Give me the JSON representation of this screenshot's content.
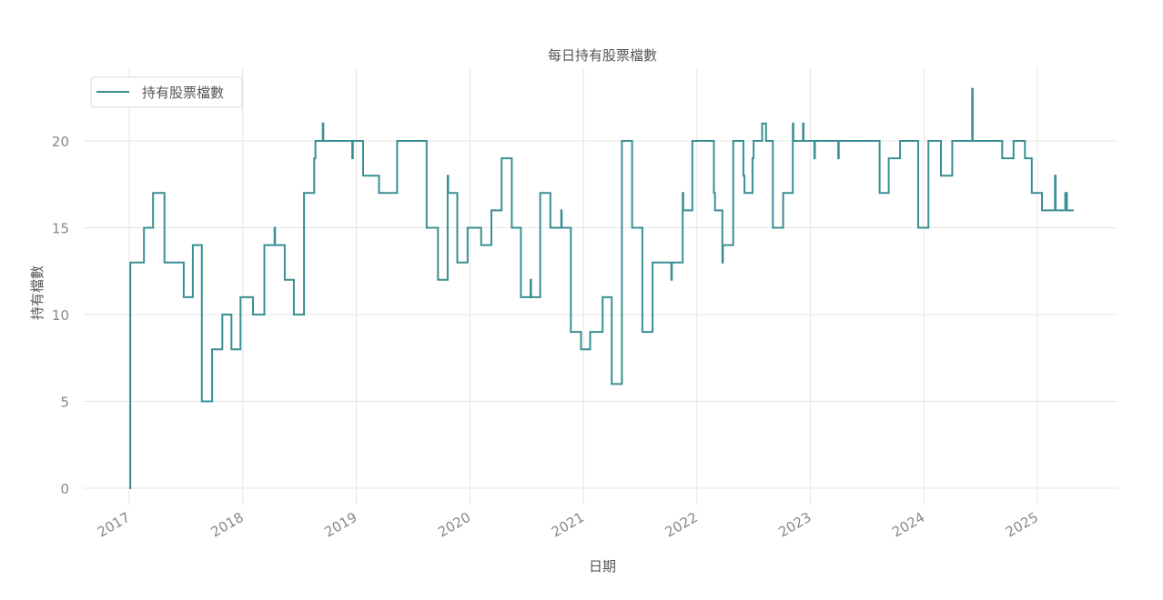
{
  "chart_data": {
    "type": "line",
    "step": true,
    "title": "每日持有股票檔數",
    "xlabel": "日期",
    "ylabel": "持有檔數",
    "legend": {
      "position": "upper left",
      "entries": [
        "持有股票檔數"
      ]
    },
    "grid": true,
    "xlim": [
      2016.6,
      2025.7
    ],
    "ylim": [
      -1.0,
      24.0
    ],
    "x_ticks": [
      2017,
      2018,
      2019,
      2020,
      2021,
      2022,
      2023,
      2024,
      2025
    ],
    "x_tick_labels": [
      "2017",
      "2018",
      "2019",
      "2020",
      "2021",
      "2022",
      "2023",
      "2024",
      "2025"
    ],
    "y_ticks": [
      0,
      5,
      10,
      15,
      20
    ],
    "y_tick_labels": [
      "0",
      "5",
      "10",
      "15",
      "20"
    ],
    "series": [
      {
        "name": "持有股票檔數",
        "color": "#3a8f93",
        "points": [
          [
            2017.0,
            0
          ],
          [
            2017.01,
            13
          ],
          [
            2017.12,
            13
          ],
          [
            2017.13,
            15
          ],
          [
            2017.2,
            15
          ],
          [
            2017.21,
            17
          ],
          [
            2017.3,
            17
          ],
          [
            2017.31,
            13
          ],
          [
            2017.47,
            13
          ],
          [
            2017.48,
            11
          ],
          [
            2017.55,
            11
          ],
          [
            2017.56,
            14
          ],
          [
            2017.63,
            14
          ],
          [
            2017.64,
            5
          ],
          [
            2017.72,
            5
          ],
          [
            2017.73,
            8
          ],
          [
            2017.81,
            8
          ],
          [
            2017.82,
            10
          ],
          [
            2017.89,
            10
          ],
          [
            2017.9,
            8
          ],
          [
            2017.97,
            8
          ],
          [
            2017.98,
            11
          ],
          [
            2018.08,
            11
          ],
          [
            2018.09,
            10
          ],
          [
            2018.18,
            10
          ],
          [
            2018.19,
            14
          ],
          [
            2018.27,
            14
          ],
          [
            2018.28,
            15
          ],
          [
            2018.285,
            14
          ],
          [
            2018.36,
            14
          ],
          [
            2018.37,
            12
          ],
          [
            2018.44,
            12
          ],
          [
            2018.45,
            10
          ],
          [
            2018.53,
            10
          ],
          [
            2018.54,
            17
          ],
          [
            2018.62,
            17
          ],
          [
            2018.63,
            19
          ],
          [
            2018.64,
            20
          ],
          [
            2018.7,
            20
          ],
          [
            2018.705,
            21
          ],
          [
            2018.71,
            20
          ],
          [
            2018.96,
            20
          ],
          [
            2018.965,
            19
          ],
          [
            2018.97,
            20
          ],
          [
            2019.05,
            20
          ],
          [
            2019.06,
            18
          ],
          [
            2019.19,
            18
          ],
          [
            2019.2,
            17
          ],
          [
            2019.35,
            17
          ],
          [
            2019.36,
            20
          ],
          [
            2019.61,
            20
          ],
          [
            2019.62,
            15
          ],
          [
            2019.71,
            15
          ],
          [
            2019.72,
            12
          ],
          [
            2019.8,
            12
          ],
          [
            2019.805,
            18
          ],
          [
            2019.81,
            17
          ],
          [
            2019.88,
            17
          ],
          [
            2019.89,
            13
          ],
          [
            2019.97,
            13
          ],
          [
            2019.98,
            15
          ],
          [
            2020.09,
            15
          ],
          [
            2020.1,
            14
          ],
          [
            2020.18,
            14
          ],
          [
            2020.19,
            16
          ],
          [
            2020.27,
            16
          ],
          [
            2020.28,
            19
          ],
          [
            2020.36,
            19
          ],
          [
            2020.37,
            15
          ],
          [
            2020.44,
            15
          ],
          [
            2020.45,
            11
          ],
          [
            2020.53,
            11
          ],
          [
            2020.535,
            12
          ],
          [
            2020.54,
            11
          ],
          [
            2020.61,
            11
          ],
          [
            2020.62,
            17
          ],
          [
            2020.7,
            17
          ],
          [
            2020.71,
            15
          ],
          [
            2020.8,
            15
          ],
          [
            2020.805,
            16
          ],
          [
            2020.81,
            15
          ],
          [
            2020.88,
            15
          ],
          [
            2020.89,
            9
          ],
          [
            2020.97,
            9
          ],
          [
            2020.98,
            8
          ],
          [
            2021.05,
            8
          ],
          [
            2021.06,
            9
          ],
          [
            2021.16,
            9
          ],
          [
            2021.17,
            11
          ],
          [
            2021.24,
            11
          ],
          [
            2021.25,
            6
          ],
          [
            2021.33,
            6
          ],
          [
            2021.34,
            20
          ],
          [
            2021.42,
            20
          ],
          [
            2021.43,
            15
          ],
          [
            2021.51,
            15
          ],
          [
            2021.52,
            9
          ],
          [
            2021.6,
            9
          ],
          [
            2021.61,
            13
          ],
          [
            2021.77,
            13
          ],
          [
            2021.775,
            12
          ],
          [
            2021.78,
            13
          ],
          [
            2021.87,
            13
          ],
          [
            2021.875,
            17
          ],
          [
            2021.88,
            16
          ],
          [
            2021.95,
            16
          ],
          [
            2021.96,
            20
          ],
          [
            2022.14,
            20
          ],
          [
            2022.15,
            17
          ],
          [
            2022.16,
            16
          ],
          [
            2022.22,
            16
          ],
          [
            2022.225,
            13
          ],
          [
            2022.23,
            14
          ],
          [
            2022.31,
            14
          ],
          [
            2022.32,
            20
          ],
          [
            2022.4,
            20
          ],
          [
            2022.41,
            18
          ],
          [
            2022.42,
            17
          ],
          [
            2022.48,
            17
          ],
          [
            2022.49,
            19
          ],
          [
            2022.5,
            20
          ],
          [
            2022.57,
            20
          ],
          [
            2022.575,
            21
          ],
          [
            2022.6,
            21
          ],
          [
            2022.61,
            20
          ],
          [
            2022.66,
            20
          ],
          [
            2022.67,
            15
          ],
          [
            2022.75,
            15
          ],
          [
            2022.76,
            17
          ],
          [
            2022.84,
            17
          ],
          [
            2022.845,
            21
          ],
          [
            2022.85,
            20
          ],
          [
            2022.93,
            20
          ],
          [
            2022.935,
            21
          ],
          [
            2022.94,
            20
          ],
          [
            2023.03,
            20
          ],
          [
            2023.035,
            19
          ],
          [
            2023.04,
            20
          ],
          [
            2023.24,
            20
          ],
          [
            2023.245,
            19
          ],
          [
            2023.25,
            20
          ],
          [
            2023.6,
            20
          ],
          [
            2023.61,
            17
          ],
          [
            2023.68,
            17
          ],
          [
            2023.69,
            19
          ],
          [
            2023.78,
            19
          ],
          [
            2023.79,
            20
          ],
          [
            2023.94,
            20
          ],
          [
            2023.95,
            15
          ],
          [
            2024.03,
            15
          ],
          [
            2024.04,
            20
          ],
          [
            2024.14,
            20
          ],
          [
            2024.15,
            18
          ],
          [
            2024.24,
            18
          ],
          [
            2024.25,
            20
          ],
          [
            2024.42,
            20
          ],
          [
            2024.425,
            23
          ],
          [
            2024.43,
            20
          ],
          [
            2024.68,
            20
          ],
          [
            2024.69,
            19
          ],
          [
            2024.78,
            19
          ],
          [
            2024.79,
            20
          ],
          [
            2024.88,
            20
          ],
          [
            2024.89,
            19
          ],
          [
            2024.94,
            19
          ],
          [
            2024.95,
            17
          ],
          [
            2025.03,
            17
          ],
          [
            2025.04,
            16
          ],
          [
            2025.15,
            16
          ],
          [
            2025.155,
            18
          ],
          [
            2025.16,
            16
          ],
          [
            2025.24,
            16
          ],
          [
            2025.245,
            17
          ],
          [
            2025.26,
            16
          ],
          [
            2025.32,
            16
          ]
        ]
      }
    ]
  }
}
